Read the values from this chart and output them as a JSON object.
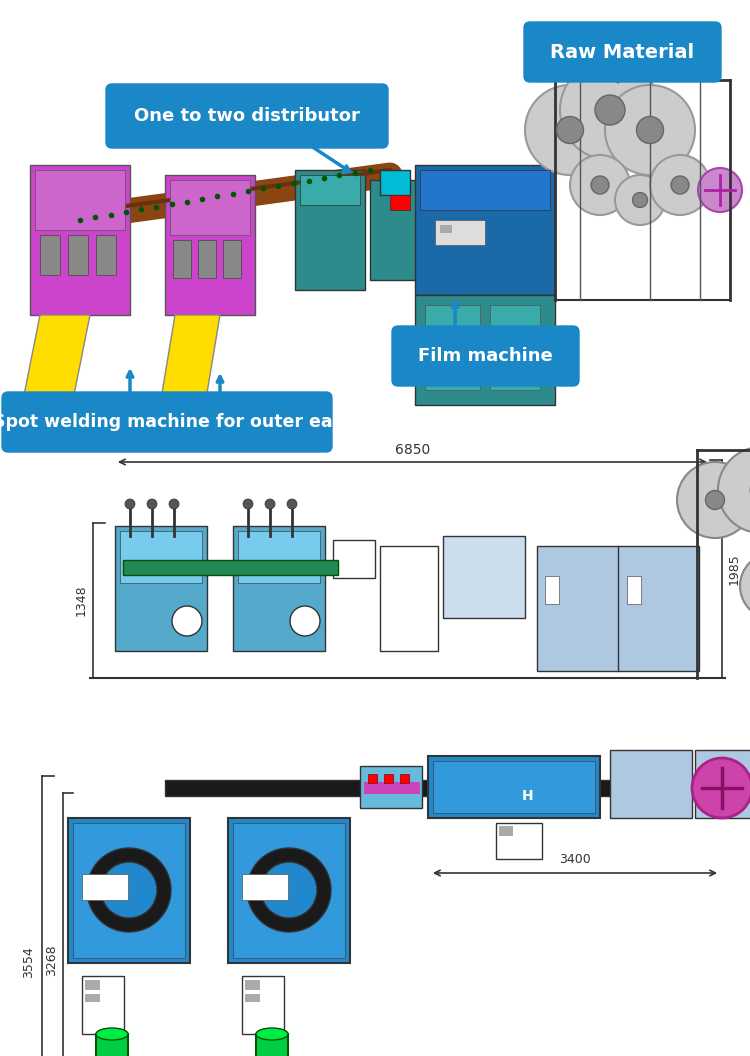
{
  "background_color": "#ffffff",
  "fig_width": 7.5,
  "fig_height": 10.56,
  "dpi": 100,
  "labels": {
    "raw_material": "Raw Material",
    "distributor": "One to two distributor",
    "film_machine": "Film machine",
    "spot_welding": "Spot welding machine for outer ear"
  },
  "label_bg_color": "#1a87c7",
  "label_text_color": "#ffffff",
  "dim_6850": "6850",
  "dim_1348": "1348",
  "dim_1985": "1985",
  "dim_3554": "3554",
  "dim_3268": "3268",
  "dim_3400": "3400",
  "colors": {
    "teal": "#2e8b8b",
    "blue": "#1a87c7",
    "light_blue": "#a8c4e0",
    "light_blue2": "#b8d4e8",
    "cyan": "#00bcd4",
    "green": "#00cc44",
    "dark_green": "#228855",
    "magenta": "#cc44cc",
    "yellow": "#ffdd00",
    "dark_gray": "#333333",
    "gray": "#888888",
    "light_gray": "#cccccc",
    "pink": "#dd88dd",
    "orange": "#ff8800",
    "red": "#dd2222",
    "brown": "#8b3a00",
    "purple": "#cc44aa",
    "dark": "#222222"
  }
}
